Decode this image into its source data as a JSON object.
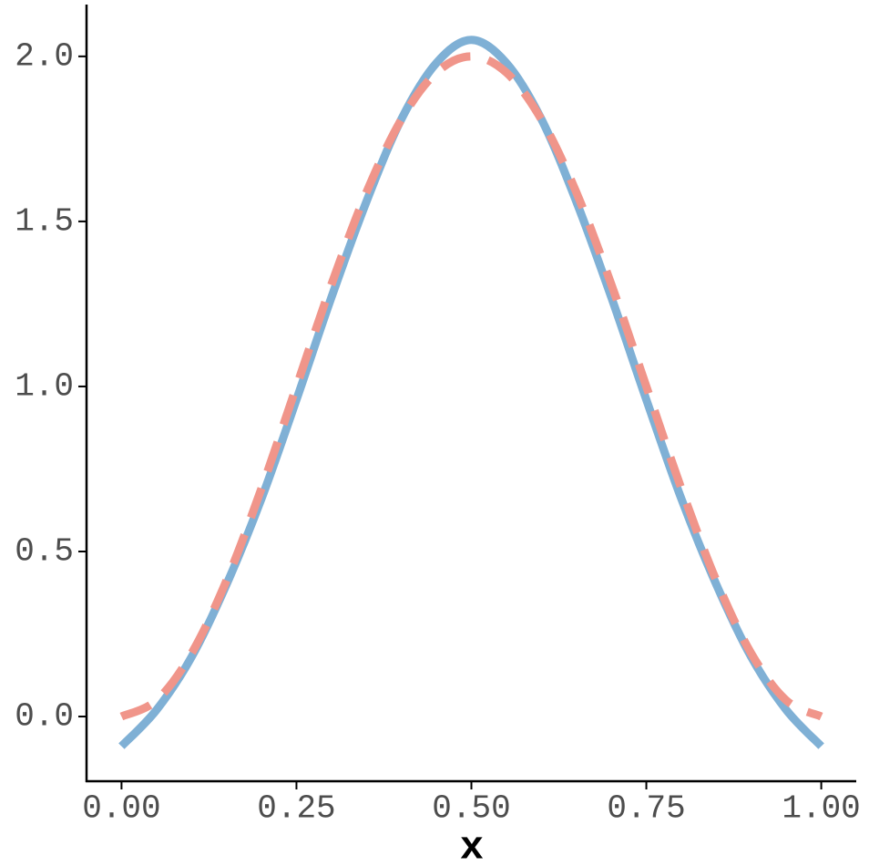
{
  "chart_data": {
    "type": "line",
    "x_label": "x",
    "x": [
      0,
      0.05,
      0.1,
      0.15,
      0.2,
      0.25,
      0.3,
      0.35,
      0.4,
      0.45,
      0.5,
      0.55,
      0.6,
      0.65,
      0.7,
      0.75,
      0.8,
      0.85,
      0.9,
      0.95,
      1
    ],
    "series": [
      {
        "color": "#7fb0d5",
        "dashed": false,
        "values": [
          -0.09,
          0.02,
          0.18,
          0.4,
          0.66,
          0.96,
          1.27,
          1.56,
          1.81,
          1.98,
          2.05,
          1.98,
          1.81,
          1.56,
          1.27,
          0.96,
          0.66,
          0.4,
          0.18,
          0.02,
          -0.09
        ]
      },
      {
        "color": "#f0958a",
        "dashed": true,
        "values": [
          0,
          0.049,
          0.191,
          0.412,
          0.691,
          1,
          1.309,
          1.588,
          1.809,
          1.951,
          2,
          1.951,
          1.809,
          1.588,
          1.309,
          1,
          0.691,
          0.412,
          0.191,
          0.049,
          0
        ]
      }
    ],
    "xlim": [
      -0.05,
      1.05
    ],
    "xticks": [
      {
        "value": 0,
        "label": "0.00"
      },
      0.25,
      {
        "value": 0.5,
        "label": "0.50"
      },
      0.75,
      {
        "value": 1,
        "label": "1.00"
      }
    ],
    "ylim": [
      -0.196,
      2.157
    ],
    "yticks": [
      {
        "value": 0,
        "label": "0.0"
      },
      0.5,
      {
        "value": 1,
        "label": "1.0"
      },
      1.5,
      {
        "value": 2,
        "label": "2.0"
      }
    ],
    "grid": false
  }
}
